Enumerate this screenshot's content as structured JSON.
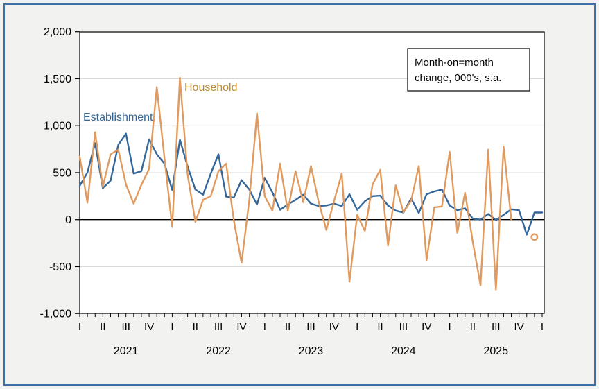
{
  "figure": {
    "background": "#f2f2f1",
    "outer_border_color": "#3d6fa8",
    "plot_background": "#ffffff",
    "plot_border_color": "#000000",
    "gridline_color": "#d9d9d9",
    "zero_line_color": "#000000"
  },
  "annotation_box": {
    "line1": "Month-on=month",
    "line2": "change, 000's, s.a."
  },
  "series_labels": {
    "establishment": "Establishment",
    "establishment_color": "#336699",
    "household": "Household",
    "household_color": "#bf8b2e"
  },
  "chart_data": {
    "type": "line",
    "title": "",
    "xlabel": "",
    "ylabel": "",
    "frequency": "monthly",
    "x_start": "2021M01",
    "x_end": "2026M01",
    "ylim": [
      -1000,
      2000
    ],
    "grid": "horizontal-only",
    "legend_position": "in-plot text labels; boxed note top-right",
    "y_ticks": [
      {
        "label": "2,000",
        "value": 2000
      },
      {
        "label": "1,500",
        "value": 1500
      },
      {
        "label": "1,000",
        "value": 1000
      },
      {
        "label": "500",
        "value": 500
      },
      {
        "label": "0",
        "value": 0
      },
      {
        "label": "-500",
        "value": -500
      },
      {
        "label": "-1,000",
        "value": -1000
      }
    ],
    "gridlines": [
      1500,
      1000,
      500,
      -500
    ],
    "quarter_labels": [
      {
        "label": "I",
        "month": 0
      },
      {
        "label": "II",
        "month": 3
      },
      {
        "label": "III",
        "month": 6
      },
      {
        "label": "IV",
        "month": 9
      },
      {
        "label": "I",
        "month": 12
      },
      {
        "label": "II",
        "month": 15
      },
      {
        "label": "III",
        "month": 18
      },
      {
        "label": "IV",
        "month": 21
      },
      {
        "label": "I",
        "month": 24
      },
      {
        "label": "II",
        "month": 27
      },
      {
        "label": "III",
        "month": 30
      },
      {
        "label": "IV",
        "month": 33
      },
      {
        "label": "I",
        "month": 36
      },
      {
        "label": "II",
        "month": 39
      },
      {
        "label": "III",
        "month": 42
      },
      {
        "label": "IV",
        "month": 45
      },
      {
        "label": "I",
        "month": 48
      },
      {
        "label": "II",
        "month": 51
      },
      {
        "label": "III",
        "month": 54
      },
      {
        "label": "IV",
        "month": 57
      },
      {
        "label": "I",
        "month": 60
      }
    ],
    "year_labels": [
      {
        "label": "2021",
        "month": 6
      },
      {
        "label": "2022",
        "month": 18
      },
      {
        "label": "2023",
        "month": 30
      },
      {
        "label": "2024",
        "month": 42
      },
      {
        "label": "2025",
        "month": 54
      }
    ],
    "series": [
      {
        "name": "Establishment",
        "color": "#336699",
        "start_month_index": 0,
        "values": [
          360,
          500,
          815,
          335,
          415,
          795,
          915,
          490,
          515,
          855,
          695,
          595,
          315,
          850,
          565,
          320,
          265,
          490,
          695,
          245,
          235,
          420,
          320,
          160,
          445,
          290,
          105,
          160,
          210,
          265,
          170,
          145,
          150,
          170,
          145,
          270,
          105,
          195,
          250,
          255,
          150,
          95,
          75,
          225,
          70,
          270,
          300,
          320,
          150,
          100,
          120,
          10,
          0,
          60,
          -5,
          50,
          110,
          100,
          -160,
          75,
          75
        ]
      },
      {
        "name": "Household",
        "color": "#e09a5e",
        "start_month_index": 0,
        "values": [
          670,
          180,
          930,
          350,
          695,
          745,
          375,
          170,
          370,
          540,
          1410,
          650,
          -80,
          1510,
          480,
          -25,
          210,
          250,
          515,
          595,
          -10,
          -460,
          210,
          1130,
          250,
          95,
          595,
          95,
          515,
          185,
          570,
          190,
          -110,
          200,
          490,
          -660,
          50,
          -120,
          375,
          530,
          -275,
          365,
          80,
          200,
          570,
          -430,
          130,
          140,
          720,
          -140,
          285,
          -240,
          -700,
          745,
          -745,
          775,
          0
        ]
      }
    ],
    "isolated_point": {
      "series": "Household",
      "month_index": 59,
      "value": -185,
      "marker": "open-circle",
      "color": "#e09a5e"
    }
  }
}
